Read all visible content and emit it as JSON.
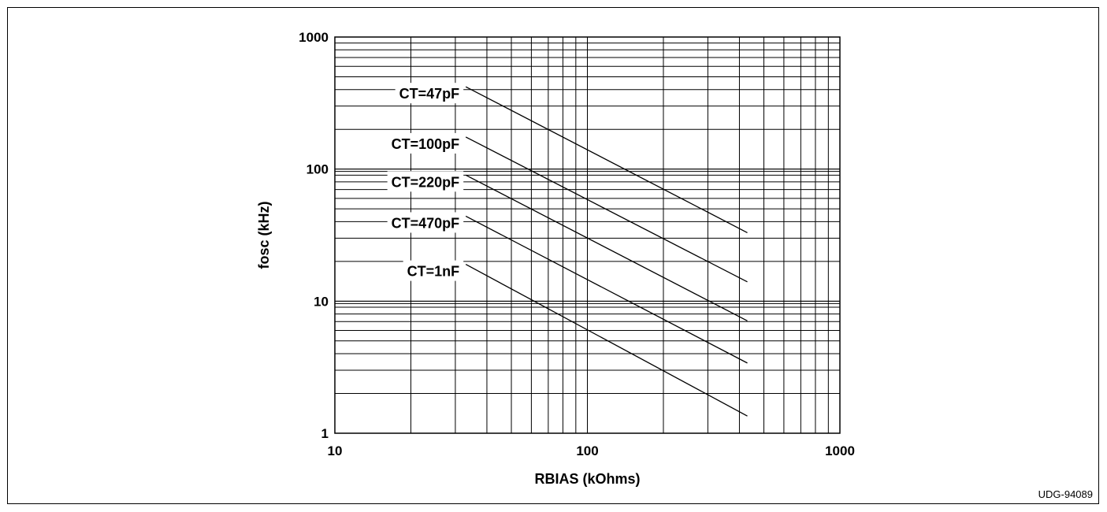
{
  "chart_data": {
    "type": "line",
    "xlabel": "RBIAS  (kOhms)",
    "ylabel": "fosc  (kHz)",
    "x_scale": "log",
    "y_scale": "log",
    "xlim": [
      10,
      1000
    ],
    "ylim": [
      1,
      1000
    ],
    "x_ticks": [
      "10",
      "100",
      "1000"
    ],
    "y_ticks": [
      "1",
      "10",
      "100",
      "1000"
    ],
    "grid": true,
    "series": [
      {
        "name": "CT=47pF",
        "x": [
          33,
          430
        ],
        "y": [
          420,
          33
        ]
      },
      {
        "name": "CT=100pF",
        "x": [
          33,
          430
        ],
        "y": [
          175,
          14
        ]
      },
      {
        "name": "CT=220pF",
        "x": [
          33,
          430
        ],
        "y": [
          90,
          7.1
        ]
      },
      {
        "name": "CT=470pF",
        "x": [
          33,
          430
        ],
        "y": [
          44,
          3.4
        ]
      },
      {
        "name": "CT=1nF",
        "x": [
          33,
          430
        ],
        "y": [
          19,
          1.35
        ]
      }
    ]
  },
  "figure_id": "UDG-94089"
}
